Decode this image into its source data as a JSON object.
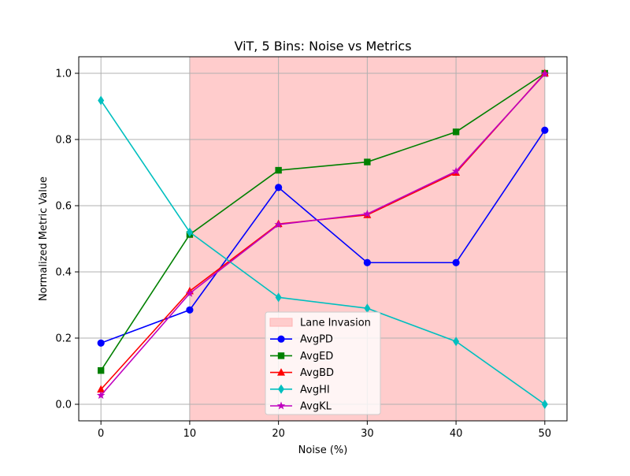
{
  "chart_data": {
    "type": "line",
    "title": "ViT, 5 Bins: Noise vs Metrics",
    "xlabel": "Noise (%)",
    "ylabel": "Normalized Metric Value",
    "x": [
      0,
      10,
      20,
      30,
      40,
      50
    ],
    "xlim": [
      -2.5,
      52.5
    ],
    "ylim": [
      -0.05,
      1.05
    ],
    "xticks": [
      "0",
      "10",
      "20",
      "30",
      "40",
      "50"
    ],
    "yticks": [
      "0.0",
      "0.2",
      "0.4",
      "0.6",
      "0.8",
      "1.0"
    ],
    "xtick_values": [
      0,
      10,
      20,
      30,
      40,
      50
    ],
    "ytick_values": [
      0.0,
      0.2,
      0.4,
      0.6,
      0.8,
      1.0
    ],
    "grid": true,
    "legend_position": "lower-center",
    "shaded_region": {
      "label": "Lane Invasion",
      "x_start": 10,
      "x_end": 50,
      "color": "#ffcccc"
    },
    "series": [
      {
        "name": "AvgPD",
        "color": "#0000ff",
        "marker": "circle",
        "values": [
          0.185,
          0.285,
          0.655,
          0.428,
          0.428,
          0.828
        ]
      },
      {
        "name": "AvgED",
        "color": "#008000",
        "marker": "square",
        "values": [
          0.102,
          0.513,
          0.707,
          0.732,
          0.823,
          1.0
        ]
      },
      {
        "name": "AvgBD",
        "color": "#ff0000",
        "marker": "triangle",
        "values": [
          0.045,
          0.342,
          0.545,
          0.572,
          0.7,
          1.0
        ]
      },
      {
        "name": "AvgHI",
        "color": "#00bfbf",
        "marker": "diamond",
        "values": [
          0.918,
          0.52,
          0.323,
          0.29,
          0.19,
          0.0
        ]
      },
      {
        "name": "AvgKL",
        "color": "#bf00bf",
        "marker": "star",
        "values": [
          0.027,
          0.335,
          0.543,
          0.575,
          0.704,
          0.998
        ]
      }
    ]
  }
}
